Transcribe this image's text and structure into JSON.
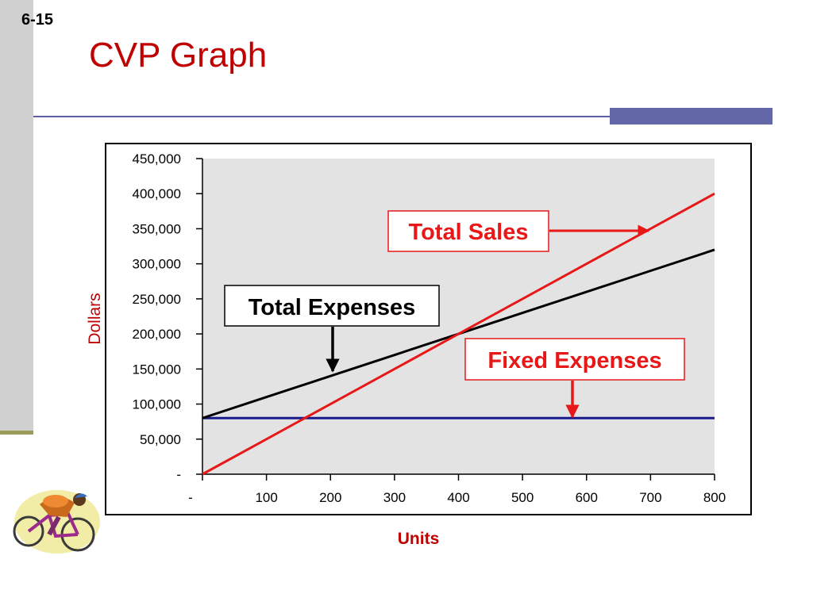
{
  "slide": {
    "number": "6-15",
    "title": "CVP Graph"
  },
  "colors": {
    "title": "#c00000",
    "sales": "#e81818",
    "expenses": "#000000",
    "fixed": "#1a1a8c",
    "plot_bg": "#e3e3e3"
  },
  "logo": {
    "icon": "cyclist-icon"
  },
  "chart_data": {
    "type": "line",
    "xlabel": "Units",
    "ylabel": "Dollars",
    "xlim": [
      0,
      800
    ],
    "ylim": [
      0,
      450000
    ],
    "x_ticks": [
      "-",
      "100",
      "200",
      "300",
      "400",
      "500",
      "600",
      "700",
      "800"
    ],
    "y_ticks": [
      "-",
      "50,000",
      "100,000",
      "150,000",
      "200,000",
      "250,000",
      "300,000",
      "350,000",
      "400,000",
      "450,000"
    ],
    "grid": false,
    "x": [
      0,
      100,
      200,
      300,
      400,
      500,
      600,
      700,
      800
    ],
    "series": [
      {
        "name": "Total Sales",
        "color": "#e81818",
        "values": [
          0,
          50000,
          100000,
          150000,
          200000,
          250000,
          300000,
          350000,
          400000
        ]
      },
      {
        "name": "Total Expenses",
        "color": "#000000",
        "values": [
          80000,
          110000,
          140000,
          170000,
          200000,
          230000,
          260000,
          290000,
          320000
        ]
      },
      {
        "name": "Fixed Expenses",
        "color": "#1a1a8c",
        "values": [
          80000,
          80000,
          80000,
          80000,
          80000,
          80000,
          80000,
          80000,
          80000
        ]
      }
    ]
  }
}
